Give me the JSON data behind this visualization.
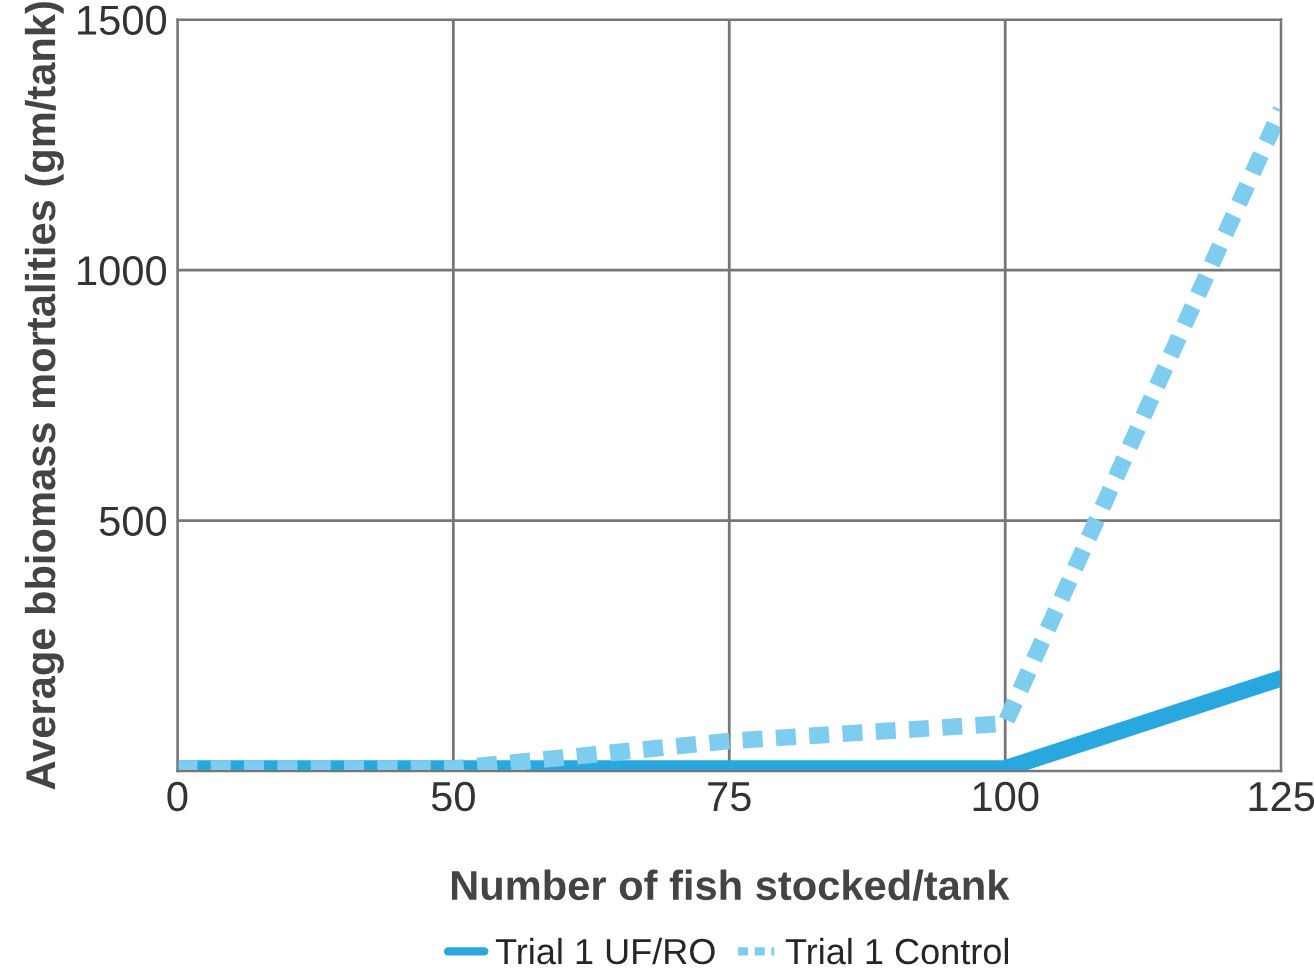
{
  "chart_data": {
    "type": "line",
    "xlabel": "Number of fish stocked/tank",
    "ylabel": "Average bbiomass mortalities (gm/tank)",
    "categories": [
      "0",
      "50",
      "75",
      "100",
      "125"
    ],
    "series": [
      {
        "name": "Trial 1 UF/RO",
        "color": "#29a8e0",
        "line_style": "solid",
        "values": [
          5,
          5,
          5,
          5,
          185
        ]
      },
      {
        "name": "Trial 1 Control",
        "color": "#7fcdee",
        "line_style": "dotted",
        "values": [
          5,
          5,
          60,
          95,
          1320
        ]
      }
    ],
    "ylim": [
      0,
      1500
    ],
    "yticks": [
      {
        "value": 0,
        "label": null
      },
      500,
      1000,
      1500
    ],
    "grid": true,
    "legend": "bottom",
    "marker": "none"
  }
}
